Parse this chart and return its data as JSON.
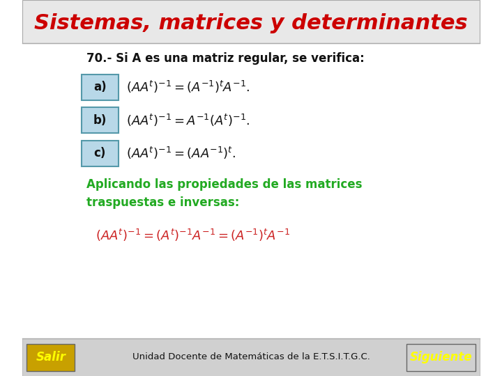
{
  "title": "Sistemas, matrices y determinantes",
  "title_color": "#cc0000",
  "title_fontsize": 22,
  "bg_color": "#ffffff",
  "header_bg": "#e8e8e8",
  "header_line_color": "#aaaaaa",
  "footer_bg": "#d0d0d0",
  "box_bg": "#b8d8e8",
  "box_border": "#5599aa",
  "box_labels": [
    "a)",
    "b)",
    "c)"
  ],
  "problem_text": "70.- Si A es una matriz regular, se verifica:",
  "eq_a": "$(AA^t)^{-1} = (A^{-1})^t A^{-1}.$",
  "eq_b": "$(AA^t)^{-1} = A^{-1}(A^t)^{-1}.$",
  "eq_c": "$(AA^t)^{-1} = (AA^{-1})^t.$",
  "applying_text1": "Aplicando las propiedades de las matrices",
  "applying_text2": "traspuestas e inversas:",
  "applying_color": "#22aa22",
  "big_eq": "$(A A^t)^{-1} = (A^t)^{-1} A^{-1} = (A^{-1})^t A^{-1}$",
  "big_eq_color": "#cc2222",
  "footer_text": "Unidad Docente de Matemáticas de la E.T.S.I.T.G.C.",
  "salir_text": "Salir",
  "siguiente_text": "Siguiente",
  "button_bg": "#c8a000",
  "button_text_color": "#ffff00",
  "next_button_text_color": "#ffff00"
}
